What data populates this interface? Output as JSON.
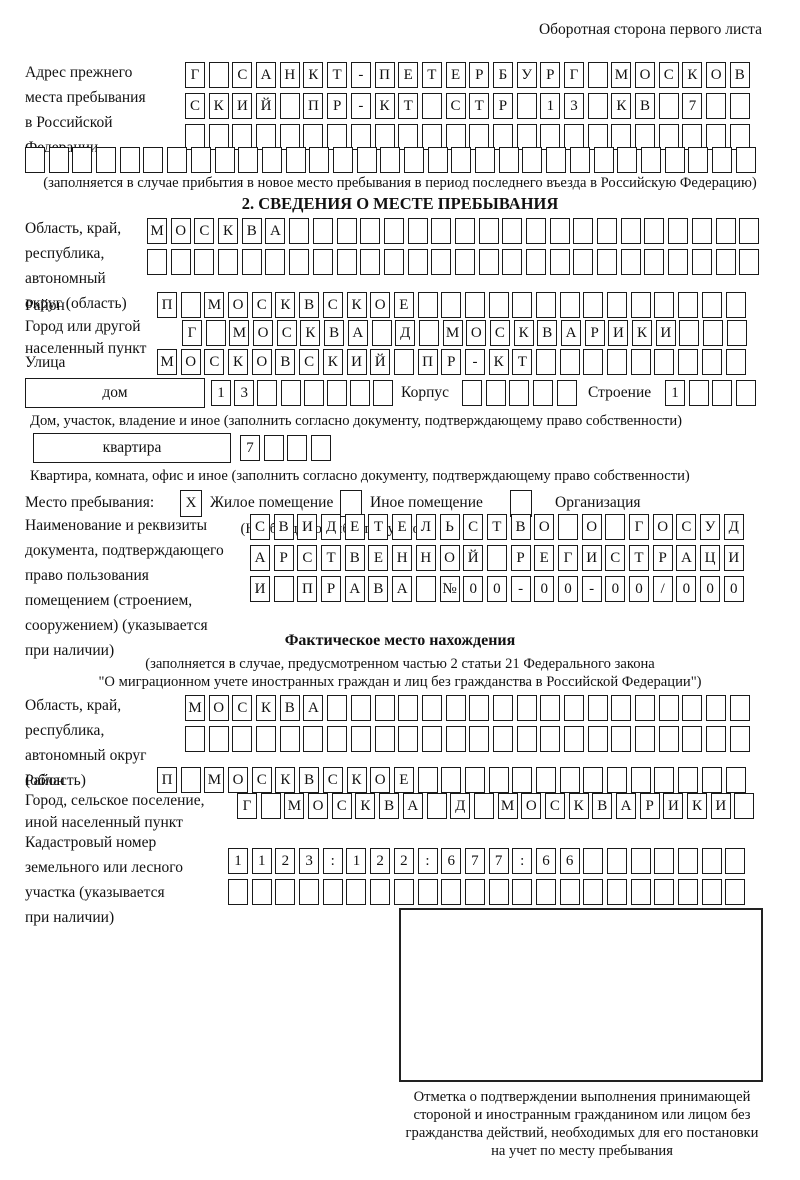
{
  "page": {
    "corner_note": "Оборотная сторона первого листа"
  },
  "prev_address": {
    "label": "Адрес прежнего\nместа пребывания\nв Российской\nФедерации",
    "row1": {
      "text": "Г САНКТ-ПЕТЕРБУРГ МОСКОВ",
      "len": 24
    },
    "row2": {
      "text": "СКИЙ ПР-КТ СТР 13 КВ 7",
      "len": 24
    },
    "row3": {
      "text": "",
      "len": 24
    },
    "row4": {
      "text": "",
      "len": 31
    },
    "caption": "(заполняется в случае прибытия в новое место пребывания в период последнего въезда в Российскую Федерацию)"
  },
  "section2": {
    "title": "2. СВЕДЕНИЯ О МЕСТЕ ПРЕБЫВАНИЯ",
    "region": {
      "label": "Область, край,\nреспублика,\nавтономный\nокруг (область)",
      "row1": {
        "text": "МОСКВА",
        "len": 26
      },
      "row2": {
        "text": "",
        "len": 26
      }
    },
    "district": {
      "label": "Район",
      "row": {
        "text": "П МОСКВСКОЕ",
        "len": 25
      }
    },
    "city": {
      "label": "Город или другой\nнаселенный пункт",
      "row": {
        "text": "Г МОСКВА Д МОСКВАРИКИ",
        "len": 24
      }
    },
    "street": {
      "label": "Улица",
      "row": {
        "text": "МОСКОВСКИЙ ПР-КТ",
        "len": 25
      }
    },
    "house": {
      "box_label": "дом",
      "cells": {
        "text": "13",
        "len": 8
      },
      "korpus_label": "Корпус",
      "korpus_cells": {
        "text": "",
        "len": 5
      },
      "stroenie_label": "Строение",
      "stroenie_cells": {
        "text": "1",
        "len": 4
      },
      "caption": "Дом, участок, владение и иное (заполнить согласно документу, подтверждающему право собственности)"
    },
    "apartment": {
      "box_label": "квартира",
      "cells": {
        "text": "7",
        "len": 4
      },
      "caption": "Квартира, комната, офис и иное (заполнить согласно документу, подтверждающему право собственности)"
    },
    "stay": {
      "label": "Место пребывания:",
      "options": [
        {
          "mark": "X",
          "label": "Жилое помещение"
        },
        {
          "mark": "",
          "label": "Иное помещение"
        },
        {
          "mark": "",
          "label": "Организация"
        }
      ],
      "caption": "(Необходимо выбрать нужное)"
    },
    "document": {
      "label": "Наименование и реквизиты\nдокумента, подтверждающего\nправо пользования\nпомещением (строением,\nсооружением) (указывается\nпри наличии)",
      "row1": {
        "text": "СВИДЕТЕЛЬСТВО О ГОСУД",
        "len": 21
      },
      "row2": {
        "text": "АРСТВЕННОЙ РЕГИСТРАЦИ",
        "len": 21
      },
      "row3": {
        "text": "И ПРАВА №00-00-00/000",
        "len": 21
      }
    }
  },
  "actual_location": {
    "title": "Фактическое место нахождения",
    "caption1": "(заполняется в случае, предусмотренном частью 2 статьи 21 Федерального закона",
    "caption2": "\"О миграционном учете иностранных граждан и лиц без гражданства в Российской Федерации\")",
    "region": {
      "label": "Область, край,\nреспублика,\nавтономный округ\n(область)",
      "row1": {
        "text": "МОСКВА",
        "len": 24
      },
      "row2": {
        "text": "",
        "len": 24
      }
    },
    "district": {
      "label": "Район",
      "row": {
        "text": "П МОСКВСКОЕ",
        "len": 25
      }
    },
    "city": {
      "label": "Город, сельское поселение,\nиной населенный пункт",
      "row": {
        "text": "Г МОСКВА Д МОСКВАРИКИ",
        "len": 22
      }
    },
    "cadastral": {
      "label": "Кадастровый номер\nземельного или лесного\nучастка (указывается\nпри наличии)",
      "row1": {
        "text": "1123:122:677:66",
        "len": 22
      },
      "row2": {
        "text": "",
        "len": 22
      }
    },
    "stamp_caption": "Отметка о подтверждении выполнения принимающей\nстороной и иностранным гражданином или лицом без\nгражданства действий, необходимых для его постановки\nна учет по месту пребывания"
  }
}
